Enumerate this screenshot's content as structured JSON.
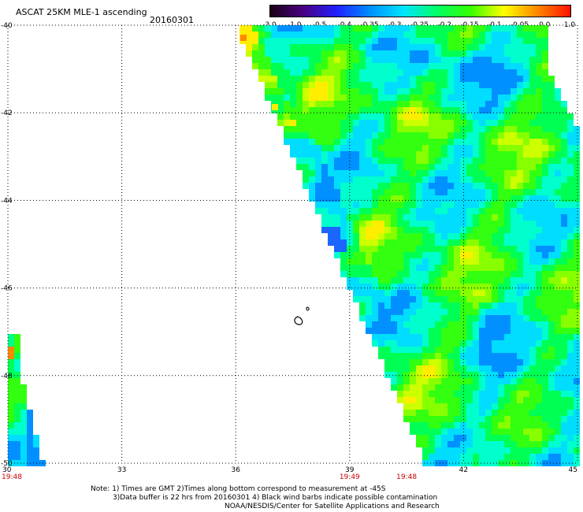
{
  "header": {
    "title": "ASCAT 25KM MLE-1 ascending",
    "date": "20160301"
  },
  "colorbar": {
    "labels": [
      "-3.0",
      "-1.0",
      "-0.5",
      "-0.4",
      "-0.35",
      "-0.3",
      "-0.25",
      "-0.2",
      "-0.15",
      "-0.1",
      "-0.05",
      "0.0",
      "1.0"
    ],
    "colors": [
      "#1a0014",
      "#4b0082",
      "#2020ff",
      "#0090ff",
      "#00e5ff",
      "#00ff66",
      "#33ff00",
      "#ffff00",
      "#ff8800",
      "#ff1100"
    ]
  },
  "axes": {
    "x_ticks": [
      "30",
      "33",
      "36",
      "39",
      "42",
      "45"
    ],
    "y_ticks": [
      "-40",
      "-42",
      "-44",
      "-46",
      "-48",
      "-50"
    ],
    "x_range": [
      30,
      45
    ],
    "y_range": [
      -50,
      -40
    ]
  },
  "time_labels": [
    {
      "text": "19:48",
      "lon": 30.0
    },
    {
      "text": "19:49",
      "lon": 39.0
    },
    {
      "text": "19:48",
      "lon": 40.5
    }
  ],
  "notes": {
    "line1": "Note: 1) Times are GMT 2)Times along bottom correspond to measurement at -45S",
    "line2": "3)Data buffer is 22 hrs from 20160301 4) Black wind barbs indicate possible contamination",
    "line3": "NOAA/NESDIS/Center for Satellite Applications and Research"
  }
}
